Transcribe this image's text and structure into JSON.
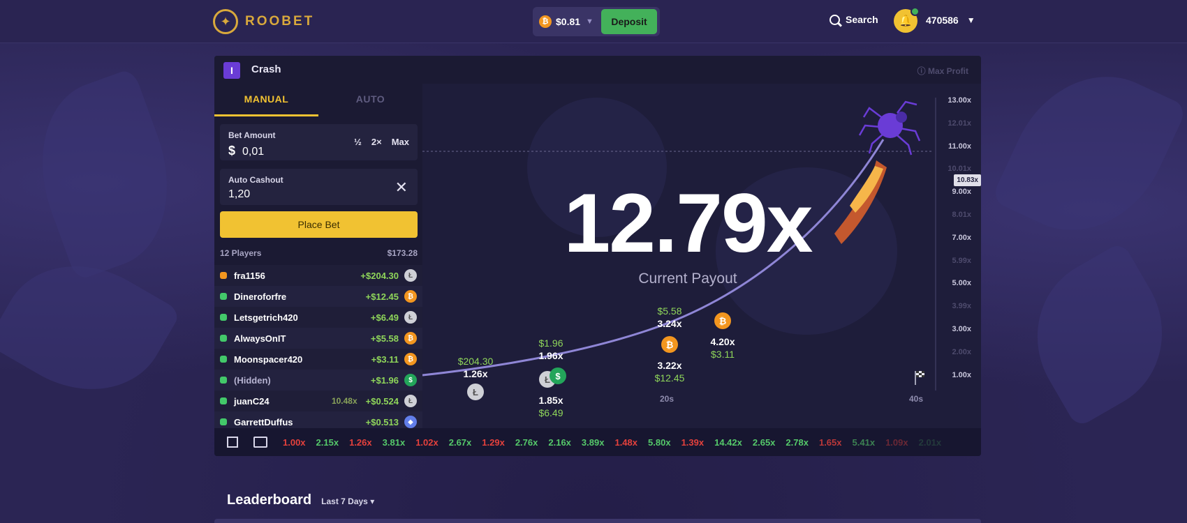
{
  "nav": {
    "brand": "ROOBET",
    "wallet_amount": "$0.81",
    "deposit_label": "Deposit",
    "search_label": "Search",
    "username": "470586"
  },
  "game": {
    "title": "Crash",
    "max_profit_label": "Max Profit",
    "tabs": [
      {
        "label": "MANUAL",
        "active": true
      },
      {
        "label": "AUTO",
        "active": false
      }
    ],
    "bet_amount_label": "Bet Amount",
    "currency_symbol": "$",
    "bet_amount_value": "0,01",
    "bet_actions": [
      "½",
      "2×",
      "Max"
    ],
    "auto_cashout_label": "Auto Cashout",
    "auto_cashout_value": "1,20",
    "place_bet_label": "Place Bet",
    "players_count_label": "12 Players",
    "players_total": "$173.28",
    "players": [
      {
        "name": "fra1156",
        "multiplier": "",
        "profit": "+$204.30",
        "coin": "ltc",
        "dot": "orange"
      },
      {
        "name": "Dineroforfre",
        "multiplier": "",
        "profit": "+$12.45",
        "coin": "btc",
        "dot": "green"
      },
      {
        "name": "Letsgetrich420",
        "multiplier": "",
        "profit": "+$6.49",
        "coin": "ltc",
        "dot": "green"
      },
      {
        "name": "AlwaysOnIT",
        "multiplier": "",
        "profit": "+$5.58",
        "coin": "btc",
        "dot": "green"
      },
      {
        "name": "Moonspacer420",
        "multiplier": "",
        "profit": "+$3.11",
        "coin": "btc",
        "dot": "green"
      },
      {
        "name": "(Hidden)",
        "multiplier": "",
        "profit": "+$1.96",
        "coin": "usd",
        "dot": "green"
      },
      {
        "name": "juanC24",
        "multiplier": "10.48x",
        "profit": "+$0.524",
        "coin": "ltc",
        "dot": "green"
      },
      {
        "name": "GarrettDuffus",
        "multiplier": "",
        "profit": "+$0.513",
        "coin": "eth",
        "dot": "green"
      }
    ],
    "current_payout_value": "12.79x",
    "current_payout_label": "Current Payout",
    "crash_marker": "10.83x",
    "y_ticks": [
      {
        "label": "13.00x",
        "faint": false
      },
      {
        "label": "12.01x",
        "faint": true
      },
      {
        "label": "11.00x",
        "faint": false
      },
      {
        "label": "10.01x",
        "faint": true
      },
      {
        "label": "9.00x",
        "faint": false
      },
      {
        "label": "8.01x",
        "faint": true
      },
      {
        "label": "7.00x",
        "faint": false
      },
      {
        "label": "5.99x",
        "faint": true
      },
      {
        "label": "5.00x",
        "faint": false
      },
      {
        "label": "3.99x",
        "faint": true
      },
      {
        "label": "3.00x",
        "faint": false
      },
      {
        "label": "2.00x",
        "faint": true
      },
      {
        "label": "1.00x",
        "faint": false
      }
    ],
    "x_labels": [
      "20s",
      "40s"
    ],
    "cashouts": [
      {
        "amount": "$204.30",
        "multiplier": "1.26x",
        "coin": "ltc"
      },
      {
        "amount": "$1.96",
        "multiplier": "1.96x",
        "coin": "usd"
      },
      {
        "amount": "$6.49",
        "multiplier": "1.85x",
        "coin": "ltc"
      },
      {
        "amount": "$5.58",
        "multiplier": "3.24x",
        "coin": "btc"
      },
      {
        "amount": "$12.45",
        "multiplier": "3.22x",
        "coin": "btc"
      },
      {
        "amount": "$3.11",
        "multiplier": "4.20x",
        "coin": "btc"
      }
    ],
    "history": [
      {
        "v": "1.00x",
        "c": "red"
      },
      {
        "v": "2.15x",
        "c": "green"
      },
      {
        "v": "1.26x",
        "c": "red"
      },
      {
        "v": "3.81x",
        "c": "green"
      },
      {
        "v": "1.02x",
        "c": "red"
      },
      {
        "v": "2.67x",
        "c": "green"
      },
      {
        "v": "1.29x",
        "c": "red"
      },
      {
        "v": "2.76x",
        "c": "green"
      },
      {
        "v": "2.16x",
        "c": "green"
      },
      {
        "v": "3.89x",
        "c": "green"
      },
      {
        "v": "1.48x",
        "c": "red"
      },
      {
        "v": "5.80x",
        "c": "green"
      },
      {
        "v": "1.39x",
        "c": "red"
      },
      {
        "v": "14.42x",
        "c": "green"
      },
      {
        "v": "2.65x",
        "c": "green"
      },
      {
        "v": "2.78x",
        "c": "green"
      },
      {
        "v": "1.65x",
        "c": "red"
      },
      {
        "v": "5.41x",
        "c": "green"
      },
      {
        "v": "1.09x",
        "c": "red"
      },
      {
        "v": "2.01x",
        "c": "green"
      }
    ]
  },
  "leaderboard": {
    "title": "Leaderboard",
    "filter": "Last 7 Days"
  },
  "colors": {
    "accent_yellow": "#f1c232",
    "deposit_green": "#43b15a",
    "curve": "#8f86d6",
    "loss_red": "#e5413c",
    "win_green": "#55c96a"
  }
}
